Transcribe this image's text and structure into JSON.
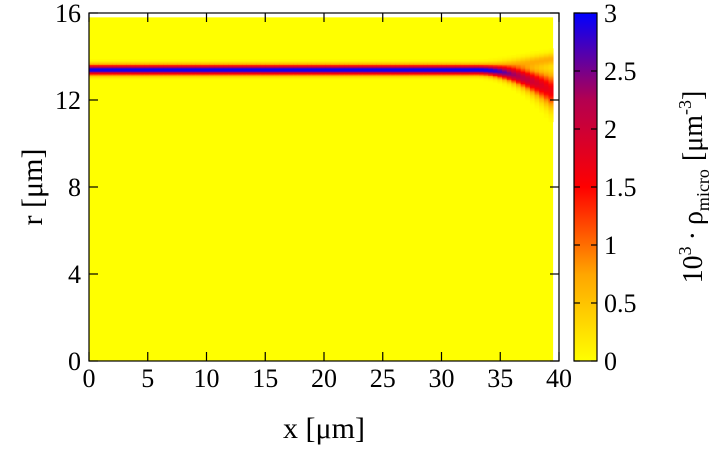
{
  "chart_data": {
    "type": "heatmap",
    "title": "",
    "xlabel": "x [μm]",
    "ylabel": "r [μm]",
    "xlim": [
      0,
      40
    ],
    "ylim": [
      0,
      16
    ],
    "x_ticks": [
      0,
      5,
      10,
      15,
      20,
      25,
      30,
      35,
      40
    ],
    "y_ticks": [
      0,
      4,
      8,
      12,
      16
    ],
    "colorbar": {
      "label_base": "10",
      "label_exp": "3",
      "label_dot": "·",
      "label_rho": "ρ",
      "label_sub": "micro",
      "label_unit": "[μm",
      "label_unit_exp": "-3",
      "label_close": "]",
      "range": [
        0,
        3
      ],
      "ticks": [
        0,
        0.5,
        1,
        1.5,
        2,
        2.5,
        3
      ],
      "colormap": [
        "#ffff00",
        "#ffa500",
        "#ff0000",
        "#b40050",
        "#0000ff"
      ]
    },
    "data_x_range": [
      0,
      39.5
    ],
    "data_r_range": [
      0,
      15.8
    ],
    "band": {
      "description_free": true,
      "center_r": 13.4,
      "sigma_r": 0.22,
      "peak_value": 3.0,
      "fade_start_x": 33,
      "end_x": 39.5,
      "end_center_r": 12.4,
      "end_peak_value": 1.6,
      "end_upper_r": 13.9
    }
  }
}
